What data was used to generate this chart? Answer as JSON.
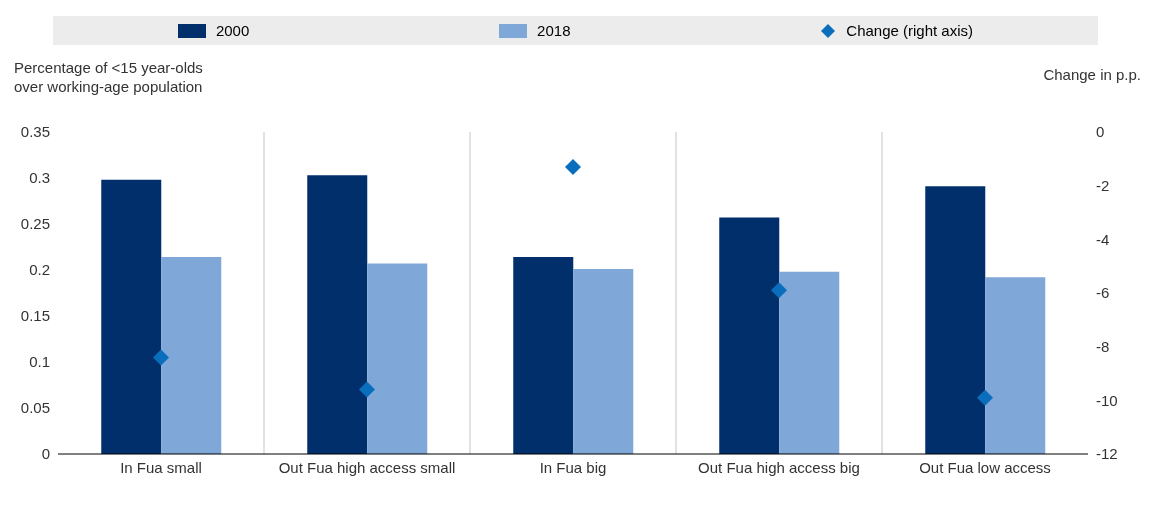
{
  "chart_data": {
    "type": "bar",
    "ylabel": "Percentage of <15 year-olds over working-age population",
    "y2label": "Change in p.p.",
    "categories": [
      "In Fua small",
      "Out Fua high access small",
      "In Fua big",
      "Out Fua high access big",
      "Out Fua low access"
    ],
    "series": [
      {
        "name": "2000",
        "color": "#002f6c",
        "values": [
          0.298,
          0.303,
          0.214,
          0.257,
          0.291
        ]
      },
      {
        "name": "2018",
        "color": "#7fa8d8",
        "values": [
          0.214,
          0.207,
          0.201,
          0.198,
          0.192
        ]
      },
      {
        "name": "Change (right axis)",
        "type": "scatter",
        "axis": "y2",
        "color": "#0a6ebd",
        "values": [
          -8.4,
          -9.6,
          -1.3,
          -5.9,
          -9.9
        ]
      }
    ],
    "ylim": [
      0,
      0.35
    ],
    "yticks": [
      0,
      0.05,
      0.1,
      0.15,
      0.2,
      0.25,
      0.3,
      0.35
    ],
    "y2lim": [
      -12,
      0
    ],
    "y2ticks": [
      -12,
      -10,
      -8,
      -6,
      -4,
      -2,
      0
    ],
    "grid": "x",
    "legend": "top",
    "marker": "diamond"
  }
}
